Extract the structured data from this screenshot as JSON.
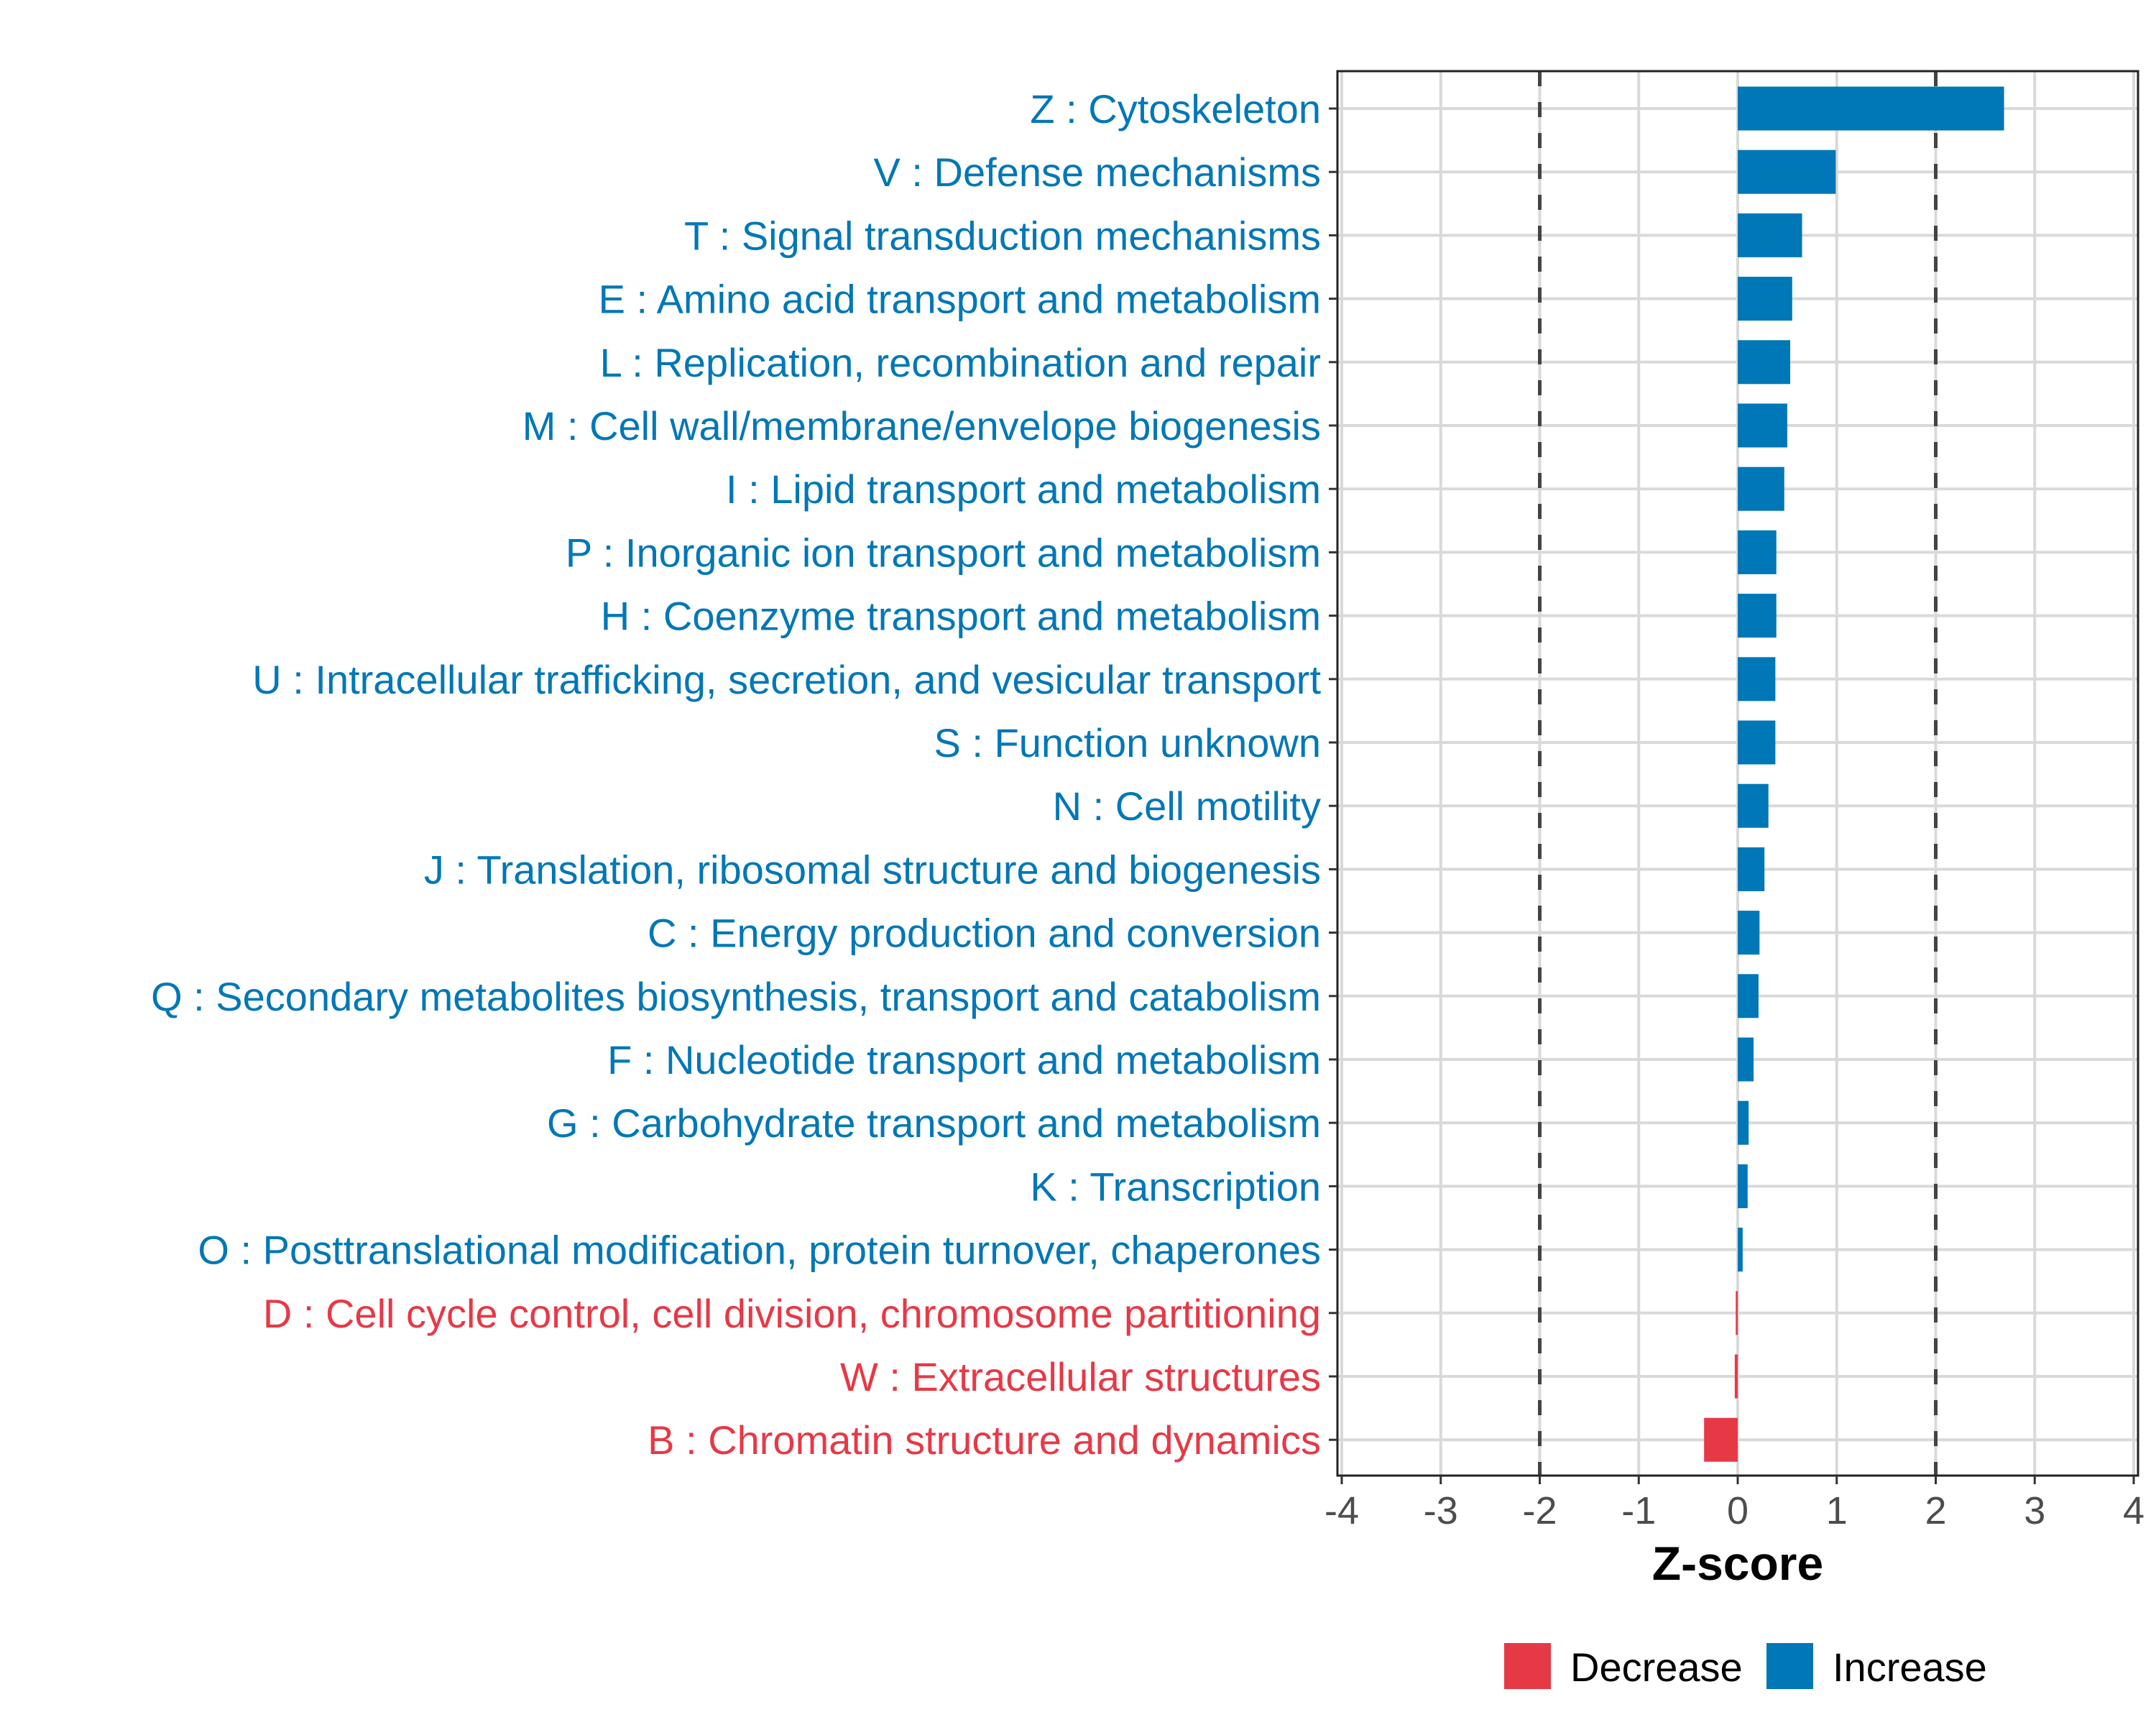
{
  "chart_data": {
    "type": "bar",
    "orientation": "horizontal",
    "xlabel": "Z-score",
    "ylabel": "",
    "xlim": [
      -4,
      4
    ],
    "xticks": [
      -4,
      -3,
      -2,
      -1,
      0,
      1,
      2,
      3,
      4
    ],
    "reference_lines": [
      -2,
      2
    ],
    "grid": true,
    "legend": {
      "placement": "bottom",
      "entries": [
        {
          "label": "Decrease",
          "color": "#E63946"
        },
        {
          "label": "Increase",
          "color": "#0077B6"
        }
      ]
    },
    "colors": {
      "Decrease": "#E63946",
      "Increase": "#0077B6"
    },
    "categories": [
      "Z : Cytoskeleton",
      "V : Defense mechanisms",
      "T : Signal transduction mechanisms",
      "E : Amino acid transport and metabolism",
      "L : Replication, recombination and repair",
      "M : Cell wall/membrane/envelope biogenesis",
      "I : Lipid transport and metabolism",
      "P : Inorganic ion transport and metabolism",
      "H : Coenzyme transport and metabolism",
      "U : Intracellular trafficking, secretion, and vesicular transport",
      "S : Function unknown",
      "N : Cell motility",
      "J : Translation, ribosomal structure and biogenesis",
      "C : Energy production and conversion",
      "Q : Secondary metabolites biosynthesis, transport and catabolism",
      "F : Nucleotide transport and metabolism",
      "G : Carbohydrate transport and metabolism",
      "K : Transcription",
      "O : Posttranslational modification, protein turnover, chaperones",
      "D : Cell cycle control, cell division, chromosome partitioning",
      "W : Extracellular structures",
      "B : Chromatin structure and dynamics"
    ],
    "values": [
      2.69,
      0.99,
      0.65,
      0.55,
      0.53,
      0.5,
      0.47,
      0.39,
      0.39,
      0.38,
      0.38,
      0.31,
      0.27,
      0.22,
      0.21,
      0.16,
      0.11,
      0.1,
      0.05,
      -0.02,
      -0.03,
      -0.34
    ]
  }
}
